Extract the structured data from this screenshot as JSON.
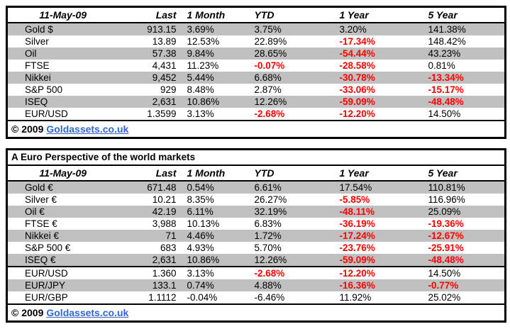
{
  "styles": {
    "negative_value_color": "#FF0000",
    "band_color": "#C0C0C0",
    "link_color": "#3366CC",
    "border_color": "#000000"
  },
  "chart_data": [
    {
      "type": "table",
      "name": "usd_markets",
      "date_label": "11-May-09",
      "columns": [
        "Last",
        "1 Month",
        "YTD",
        "1 Year",
        "5 Year"
      ],
      "rows": [
        {
          "label": "Gold $",
          "cells": [
            {
              "text": "913.15"
            },
            {
              "text": "3.69%"
            },
            {
              "text": "3.75%"
            },
            {
              "text": "3.20%"
            },
            {
              "text": "141.38%"
            }
          ]
        },
        {
          "label": "Silver",
          "cells": [
            {
              "text": "13.89"
            },
            {
              "text": "12.53%"
            },
            {
              "text": "22.89%"
            },
            {
              "text": "-17.34%",
              "red": true
            },
            {
              "text": "148.42%"
            }
          ]
        },
        {
          "label": "Oil",
          "cells": [
            {
              "text": "57.38"
            },
            {
              "text": "9.84%"
            },
            {
              "text": "28.65%"
            },
            {
              "text": "-54.44%",
              "red": true
            },
            {
              "text": "43.23%"
            }
          ]
        },
        {
          "label": "FTSE",
          "cells": [
            {
              "text": "4,431"
            },
            {
              "text": "11.23%"
            },
            {
              "text": "-0.07%",
              "red": true
            },
            {
              "text": "-28.58%",
              "red": true
            },
            {
              "text": "0.81%"
            }
          ]
        },
        {
          "label": "Nikkei",
          "cells": [
            {
              "text": "9,452"
            },
            {
              "text": "5.44%"
            },
            {
              "text": "6.68%"
            },
            {
              "text": "-30.78%",
              "red": true
            },
            {
              "text": "-13.34%",
              "red": true
            }
          ]
        },
        {
          "label": "S&P 500",
          "cells": [
            {
              "text": "929"
            },
            {
              "text": "8.48%"
            },
            {
              "text": "2.87%"
            },
            {
              "text": "-33.06%",
              "red": true
            },
            {
              "text": "-15.17%",
              "red": true
            }
          ]
        },
        {
          "label": "ISEQ",
          "cells": [
            {
              "text": "2,631"
            },
            {
              "text": "10.86%"
            },
            {
              "text": "12.26%"
            },
            {
              "text": "-59.09%",
              "red": true
            },
            {
              "text": "-48.48%",
              "red": true
            }
          ]
        },
        {
          "label": "EUR/USD",
          "cells": [
            {
              "text": "1.3599"
            },
            {
              "text": "3.13%"
            },
            {
              "text": "-2.68%",
              "red": true
            },
            {
              "text": "-12.20%",
              "red": true
            },
            {
              "text": "14.50%"
            }
          ]
        }
      ],
      "footer": {
        "copyright_prefix": "© 2009",
        "link_text": "Goldassets.co.uk"
      }
    },
    {
      "type": "table",
      "name": "euro_markets",
      "title": "A Euro Perspective of the world markets",
      "date_label": "11-May-09",
      "columns": [
        "Last",
        "1 Month",
        "YTD",
        "1 Year",
        "5 Year"
      ],
      "rows": [
        {
          "label": "Gold €",
          "cells": [
            {
              "text": "671.48"
            },
            {
              "text": "0.54%"
            },
            {
              "text": "6.61%"
            },
            {
              "text": "17.54%"
            },
            {
              "text": "110.81%"
            }
          ]
        },
        {
          "label": "Silver €",
          "cells": [
            {
              "text": "10.21"
            },
            {
              "text": "8.35%"
            },
            {
              "text": "26.27%"
            },
            {
              "text": "-5.85%",
              "red": true
            },
            {
              "text": "116.96%"
            }
          ]
        },
        {
          "label": "Oil €",
          "cells": [
            {
              "text": "42.19"
            },
            {
              "text": "6.11%"
            },
            {
              "text": "32.19%"
            },
            {
              "text": "-48.11%",
              "red": true
            },
            {
              "text": "25.09%"
            }
          ]
        },
        {
          "label": "FTSE €",
          "cells": [
            {
              "text": "3,988"
            },
            {
              "text": "10.13%"
            },
            {
              "text": "6.83%"
            },
            {
              "text": "-36.19%",
              "red": true
            },
            {
              "text": "-19.36%",
              "red": true
            }
          ]
        },
        {
          "label": "Nikkei €",
          "cells": [
            {
              "text": "71"
            },
            {
              "text": "4.46%"
            },
            {
              "text": "1.72%"
            },
            {
              "text": "-17.24%",
              "red": true
            },
            {
              "text": "-12.67%",
              "red": true
            }
          ]
        },
        {
          "label": "S&P 500 €",
          "cells": [
            {
              "text": "683"
            },
            {
              "text": "4.93%"
            },
            {
              "text": "5.70%"
            },
            {
              "text": "-23.76%",
              "red": true
            },
            {
              "text": "-25.91%",
              "red": true
            }
          ]
        },
        {
          "label": "ISEQ €",
          "cells": [
            {
              "text": "2,631"
            },
            {
              "text": "10.86%"
            },
            {
              "text": "12.26%"
            },
            {
              "text": "-59.09%",
              "red": true
            },
            {
              "text": "-48.48%",
              "red": true
            }
          ]
        }
      ],
      "fx_rows": [
        {
          "label": "EUR/USD",
          "cells": [
            {
              "text": "1.360"
            },
            {
              "text": "3.13%"
            },
            {
              "text": "-2.68%",
              "red": true
            },
            {
              "text": "-12.20%",
              "red": true
            },
            {
              "text": "14.50%"
            }
          ]
        },
        {
          "label": "EUR/JPY",
          "cells": [
            {
              "text": "133.1"
            },
            {
              "text": "0.74%"
            },
            {
              "text": "4.88%"
            },
            {
              "text": "-16.36%",
              "red": true
            },
            {
              "text": "-0.77%",
              "red": true
            }
          ]
        },
        {
          "label": "EUR/GBP",
          "cells": [
            {
              "text": "1.1112"
            },
            {
              "text": "-0.04%"
            },
            {
              "text": "-6.46%"
            },
            {
              "text": "11.92%"
            },
            {
              "text": "25.02%"
            }
          ]
        }
      ],
      "footer": {
        "copyright_prefix": "© 2009",
        "link_text": "Goldassets.co.uk"
      }
    }
  ]
}
